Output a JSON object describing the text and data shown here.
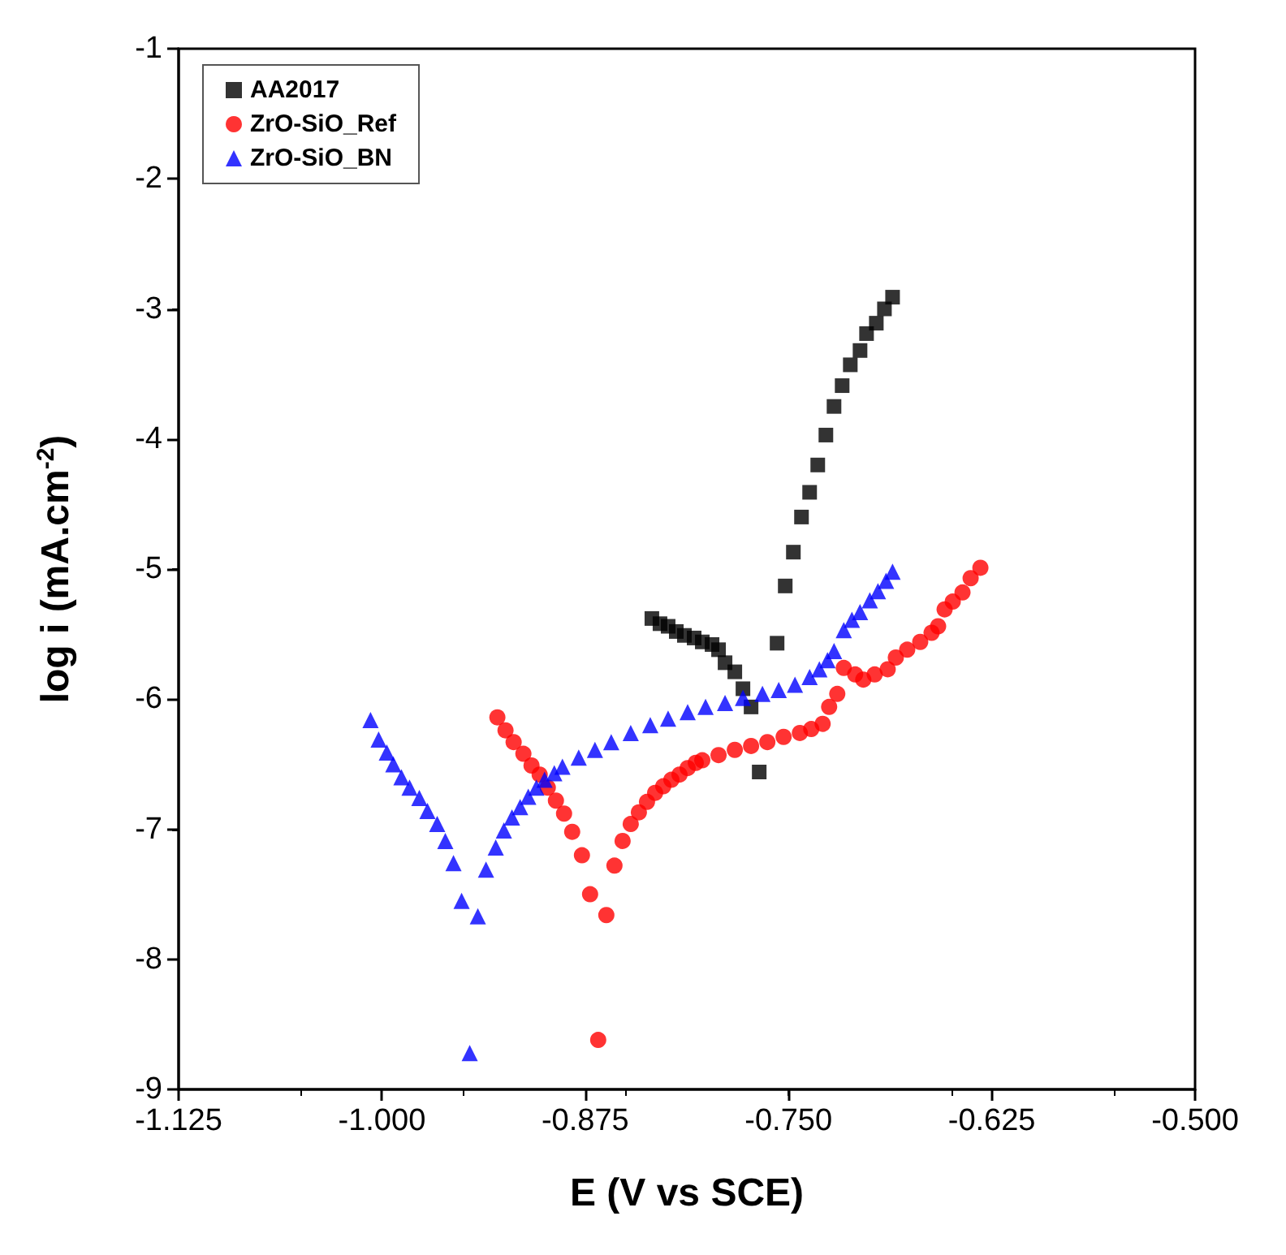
{
  "chart_data": {
    "type": "scatter",
    "xlabel": "E (V vs SCE)",
    "ylabel": "log i (mA.cm$^{-2}$)",
    "xlim": [
      -1.125,
      -0.5
    ],
    "xticks": [
      -1.125,
      {
        "value": -1,
        "label": "-1.000"
      },
      -0.875,
      {
        "value": -0.75,
        "label": "-0.750"
      },
      -0.625,
      {
        "value": -0.5,
        "label": "-0.500"
      }
    ],
    "ylim": [
      -9,
      -1
    ],
    "yticks": [
      -9,
      -8,
      -7,
      -6,
      -5,
      -4,
      -3,
      -2,
      -1
    ],
    "grid": false,
    "legend": "top left",
    "series": [
      {
        "name": "AA2017",
        "color": "#000000",
        "marker": "square",
        "x": [
          -0.834,
          -0.829,
          -0.824,
          -0.819,
          -0.814,
          -0.808,
          -0.803,
          -0.797,
          -0.793,
          -0.789,
          -0.783,
          -0.778,
          -0.773,
          -0.768,
          -0.757,
          -0.752,
          -0.747,
          -0.742,
          -0.737,
          -0.732,
          -0.727,
          -0.722,
          -0.717,
          -0.712,
          -0.706,
          -0.702,
          -0.696,
          -0.691,
          -0.686
        ],
        "values": [
          -5.38,
          -5.42,
          -5.44,
          -5.48,
          -5.51,
          -5.53,
          -5.56,
          -5.58,
          -5.62,
          -5.72,
          -5.79,
          -5.92,
          -6.06,
          -6.56,
          -5.57,
          -5.13,
          -4.87,
          -4.6,
          -4.41,
          -4.2,
          -3.97,
          -3.75,
          -3.59,
          -3.43,
          -3.32,
          -3.19,
          -3.11,
          -3.0,
          -2.91
        ]
      },
      {
        "name": "ZrO-SiO_Ref",
        "color": "#ff0000",
        "marker": "circle",
        "x": [
          -0.929,
          -0.924,
          -0.919,
          -0.913,
          -0.908,
          -0.903,
          -0.898,
          -0.893,
          -0.888,
          -0.883,
          -0.877,
          -0.872,
          -0.867,
          -0.862,
          -0.857,
          -0.852,
          -0.847,
          -0.842,
          -0.837,
          -0.832,
          -0.827,
          -0.822,
          -0.817,
          -0.812,
          -0.807,
          -0.803,
          -0.793,
          -0.783,
          -0.773,
          -0.763,
          -0.753,
          -0.743,
          -0.736,
          -0.729,
          -0.725,
          -0.72,
          -0.716,
          -0.709,
          -0.704,
          -0.697,
          -0.689,
          -0.684,
          -0.677,
          -0.669,
          -0.662,
          -0.658,
          -0.654,
          -0.649,
          -0.643,
          -0.638,
          -0.632
        ],
        "values": [
          -6.14,
          -6.24,
          -6.33,
          -6.42,
          -6.51,
          -6.58,
          -6.68,
          -6.78,
          -6.88,
          -7.02,
          -7.2,
          -7.5,
          -8.62,
          -7.66,
          -7.28,
          -7.09,
          -6.96,
          -6.87,
          -6.79,
          -6.72,
          -6.67,
          -6.62,
          -6.58,
          -6.53,
          -6.49,
          -6.47,
          -6.43,
          -6.39,
          -6.36,
          -6.33,
          -6.29,
          -6.26,
          -6.23,
          -6.19,
          -6.06,
          -5.96,
          -5.76,
          -5.81,
          -5.85,
          -5.81,
          -5.77,
          -5.68,
          -5.62,
          -5.56,
          -5.49,
          -5.44,
          -5.31,
          -5.25,
          -5.18,
          -5.07,
          -4.99
        ]
      },
      {
        "name": "ZrO-SiO_BN",
        "color": "#0000ff",
        "marker": "triangle",
        "x": [
          -1.007,
          -1.002,
          -0.997,
          -0.993,
          -0.988,
          -0.983,
          -0.977,
          -0.972,
          -0.966,
          -0.961,
          -0.956,
          -0.951,
          -0.946,
          -0.941,
          -0.936,
          -0.93,
          -0.925,
          -0.92,
          -0.915,
          -0.91,
          -0.905,
          -0.9,
          -0.894,
          -0.889,
          -0.879,
          -0.869,
          -0.859,
          -0.847,
          -0.835,
          -0.824,
          -0.812,
          -0.801,
          -0.789,
          -0.778,
          -0.766,
          -0.756,
          -0.746,
          -0.737,
          -0.731,
          -0.726,
          -0.722,
          -0.716,
          -0.711,
          -0.706,
          -0.7,
          -0.695,
          -0.69,
          -0.686
        ],
        "values": [
          -6.16,
          -6.31,
          -6.41,
          -6.5,
          -6.6,
          -6.68,
          -6.76,
          -6.86,
          -6.96,
          -7.09,
          -7.26,
          -7.55,
          -8.72,
          -7.67,
          -7.31,
          -7.14,
          -7.01,
          -6.91,
          -6.83,
          -6.75,
          -6.68,
          -6.62,
          -6.57,
          -6.52,
          -6.45,
          -6.39,
          -6.33,
          -6.26,
          -6.2,
          -6.15,
          -6.1,
          -6.06,
          -6.03,
          -5.99,
          -5.96,
          -5.93,
          -5.89,
          -5.83,
          -5.77,
          -5.7,
          -5.63,
          -5.47,
          -5.39,
          -5.33,
          -5.24,
          -5.17,
          -5.09,
          -5.02
        ]
      }
    ]
  }
}
